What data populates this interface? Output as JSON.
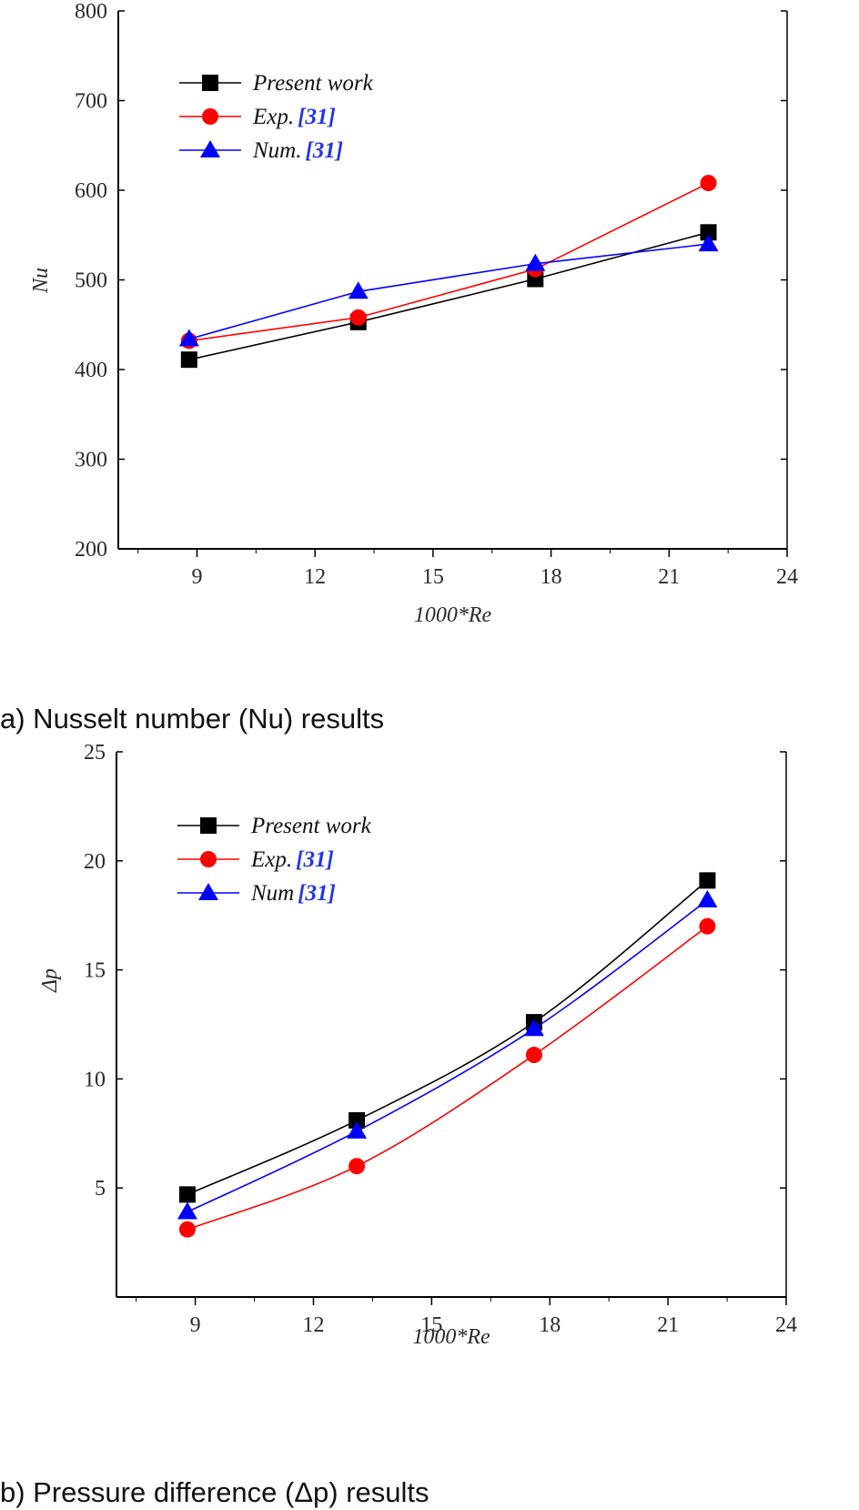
{
  "chart_data": [
    {
      "type": "line",
      "caption": "a)   Nusselt number (Nu) results",
      "xlabel": "1000*Re",
      "ylabel": "Nu",
      "xlim": [
        7,
        24
      ],
      "ylim": [
        200,
        800
      ],
      "xticks": [
        "9",
        "12",
        "15",
        "18",
        "21",
        "24"
      ],
      "xtick_values": [
        9,
        12,
        15,
        18,
        21,
        24
      ],
      "yticks": [
        "200",
        "300",
        "400",
        "500",
        "600",
        "700",
        "800"
      ],
      "ytick_values": [
        200,
        300,
        400,
        500,
        600,
        700,
        800
      ],
      "legend_position": "top-left",
      "series": [
        {
          "name": "Present work",
          "ref": "",
          "color": "#000000",
          "marker": "square",
          "x": [
            8.8,
            13.1,
            17.6,
            22.0
          ],
          "y": [
            411,
            453,
            501,
            553
          ]
        },
        {
          "name": "Exp.",
          "ref": "[31]",
          "color": "#ff0000",
          "marker": "circle",
          "x": [
            8.8,
            13.1,
            17.6,
            22.0
          ],
          "y": [
            432,
            458,
            512,
            608
          ]
        },
        {
          "name": "Num.",
          "ref": "[31]",
          "color": "#0000ff",
          "marker": "triangle",
          "x": [
            8.8,
            13.1,
            17.6,
            22.0
          ],
          "y": [
            434,
            487,
            518,
            540
          ]
        }
      ]
    },
    {
      "type": "line",
      "caption": "b)   Pressure difference (Δp) results",
      "xlabel": "1000*Re",
      "ylabel": "Δp",
      "xlim": [
        7,
        24
      ],
      "ylim": [
        0,
        25
      ],
      "xticks": [
        "9",
        "12",
        "15",
        "18",
        "21",
        "24"
      ],
      "xtick_values": [
        9,
        12,
        15,
        18,
        21,
        24
      ],
      "yticks": [
        "5",
        "10",
        "15",
        "20",
        "25"
      ],
      "ytick_values": [
        5,
        10,
        15,
        20,
        25
      ],
      "legend_position": "top-left",
      "series": [
        {
          "name": "Present work",
          "ref": "",
          "color": "#000000",
          "marker": "square",
          "x": [
            8.8,
            13.1,
            17.6,
            22.0
          ],
          "y": [
            4.7,
            8.1,
            12.6,
            19.1
          ]
        },
        {
          "name": "Exp.",
          "ref": "[31]",
          "color": "#ff0000",
          "marker": "circle",
          "x": [
            8.8,
            13.1,
            17.6,
            22.0
          ],
          "y": [
            3.1,
            6.0,
            11.1,
            17.0
          ]
        },
        {
          "name": "Num",
          "ref": "[31]",
          "color": "#0000ff",
          "marker": "triangle",
          "x": [
            8.8,
            13.1,
            17.6,
            22.0
          ],
          "y": [
            3.9,
            7.6,
            12.3,
            18.2
          ]
        }
      ]
    }
  ]
}
